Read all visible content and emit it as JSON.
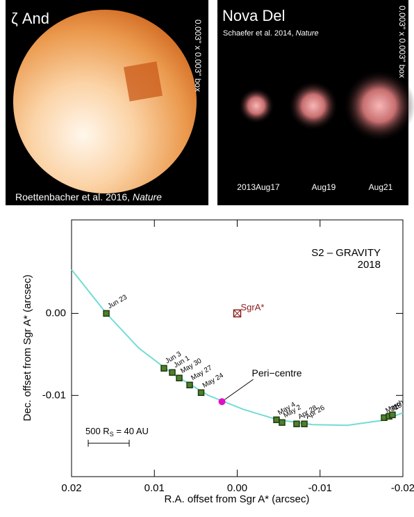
{
  "panels": [
    {
      "title": "ζ And",
      "box": "0.003\" x 0.003\" box",
      "credit": "Roettenbacher et al. 2016, ",
      "journal": "Nature"
    },
    {
      "title": "Nova Del",
      "credit": "Schaefer et al. 2014, ",
      "journal": "Nature",
      "box": "0.003\" x 0.003\" box",
      "dates": [
        "2013Aug17",
        "Aug19",
        "Aug21"
      ]
    }
  ],
  "chart_data": {
    "type": "line",
    "title": "S2 – GRAVITY",
    "subtitle": "2018",
    "xlabel": "R.A. offset from Sgr A* (arcsec)",
    "ylabel": "Dec. offset from Sgr A* (arcsec)",
    "xlim": [
      0.02,
      -0.02
    ],
    "ylim": [
      -0.0199,
      0.0114
    ],
    "xticks": [
      0.02,
      0.01,
      {
        "value": 0,
        "label": "0.00"
      },
      -0.01,
      -0.02
    ],
    "yticks": [
      {
        "value": 0,
        "label": "0.00"
      },
      -0.01
    ],
    "series": [
      {
        "kind": "line",
        "color": "#72dcd4",
        "x": [
          0.02,
          0.0158,
          0.01187,
          0.00767,
          0.00348,
          -0.00071,
          -0.00491,
          -0.0091,
          -0.01329,
          -0.01749,
          -0.02
        ],
        "values": [
          0.00534,
          0,
          -0.00424,
          -0.00746,
          -0.01,
          -0.01169,
          -0.01297,
          -0.01356,
          -0.01364,
          -0.01305,
          -0.01212
        ]
      },
      {
        "kind": "square",
        "color": "#4f7f2c",
        "x": [
          0.0158,
          0.00885,
          0.00784,
          0.007,
          0.00574,
          0.00436,
          -0.00474,
          -0.00541,
          -0.00717,
          -0.0081,
          -0.01774,
          -0.01833,
          -0.01874
        ],
        "values": [
          0,
          -0.00669,
          -0.0072,
          -0.00788,
          -0.00873,
          -0.00966,
          -0.01297,
          -0.0133,
          -0.01347,
          -0.01347,
          -0.01271,
          -0.01254,
          -0.01237
        ],
        "labels": [
          "Jun 23",
          "Jun 3",
          "Jun 1",
          "May 30",
          "May 27",
          "May 24",
          "May 4",
          "May 2",
          "Apr 28",
          "Apr 26",
          "March",
          "31",
          "28"
        ]
      },
      {
        "kind": "dot",
        "name": "Peri−centre",
        "color": "#e010c8",
        "x": [
          0.00184
        ],
        "values": [
          -0.01076
        ]
      },
      {
        "kind": "cross",
        "name": "SgrA*",
        "color": "#8b1a1a",
        "x": [
          0
        ],
        "values": [
          0
        ]
      }
    ],
    "scale_bar": {
      "label": "500 R",
      "sub": "S",
      "rest": " = 40 AU"
    }
  }
}
